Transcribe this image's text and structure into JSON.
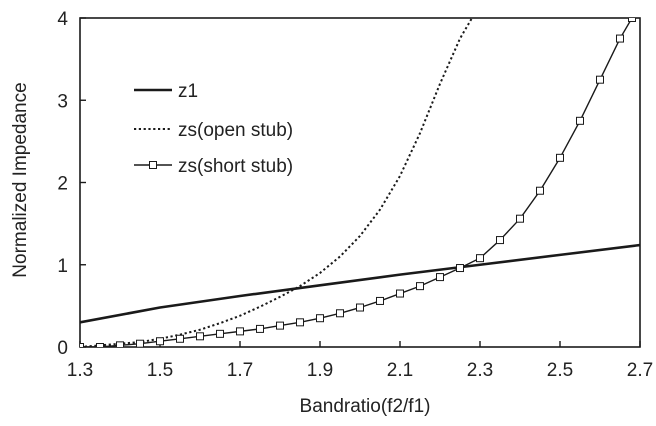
{
  "chart_data": {
    "type": "line",
    "title": "",
    "xlabel": "Bandratio(f2/f1)",
    "ylabel": "Normalized Impedance",
    "xlim": [
      1.3,
      2.7
    ],
    "ylim": [
      0,
      4
    ],
    "x_ticks": [
      "1.3",
      "1.5",
      "1.7",
      "1.9",
      "2.1",
      "2.3",
      "2.5",
      "2.7"
    ],
    "y_ticks": [
      "0",
      "1",
      "2",
      "3",
      "4"
    ],
    "grid": false,
    "legend_position": "upper-left",
    "line_color": "#1a1a1a",
    "series": [
      {
        "name": "z1",
        "style": "solid",
        "x": [
          1.3,
          1.5,
          1.7,
          1.9,
          2.1,
          2.3,
          2.5,
          2.7
        ],
        "y": [
          0.3,
          0.48,
          0.62,
          0.75,
          0.88,
          1.0,
          1.12,
          1.24
        ]
      },
      {
        "name": "zs(open stub)",
        "style": "dotted",
        "x": [
          1.3,
          1.35,
          1.4,
          1.45,
          1.5,
          1.55,
          1.6,
          1.65,
          1.7,
          1.75,
          1.8,
          1.85,
          1.9,
          1.95,
          2.0,
          2.05,
          2.1,
          2.15,
          2.2,
          2.25,
          2.28
        ],
        "y": [
          0.0,
          0.02,
          0.04,
          0.06,
          0.1,
          0.15,
          0.21,
          0.29,
          0.38,
          0.49,
          0.61,
          0.74,
          0.9,
          1.1,
          1.35,
          1.67,
          2.08,
          2.6,
          3.2,
          3.75,
          4.0
        ]
      },
      {
        "name": "zs(short stub)",
        "style": "solid-square-markers",
        "x": [
          1.3,
          1.35,
          1.4,
          1.45,
          1.5,
          1.55,
          1.6,
          1.65,
          1.7,
          1.75,
          1.8,
          1.85,
          1.9,
          1.95,
          2.0,
          2.05,
          2.1,
          2.15,
          2.2,
          2.25,
          2.3,
          2.35,
          2.4,
          2.45,
          2.5,
          2.55,
          2.6,
          2.65,
          2.68
        ],
        "y": [
          0.0,
          0.0,
          0.02,
          0.04,
          0.07,
          0.1,
          0.13,
          0.16,
          0.19,
          0.22,
          0.26,
          0.3,
          0.35,
          0.41,
          0.48,
          0.56,
          0.65,
          0.74,
          0.85,
          0.96,
          1.08,
          1.3,
          1.56,
          1.9,
          2.3,
          2.75,
          3.25,
          3.75,
          4.0
        ]
      }
    ]
  }
}
